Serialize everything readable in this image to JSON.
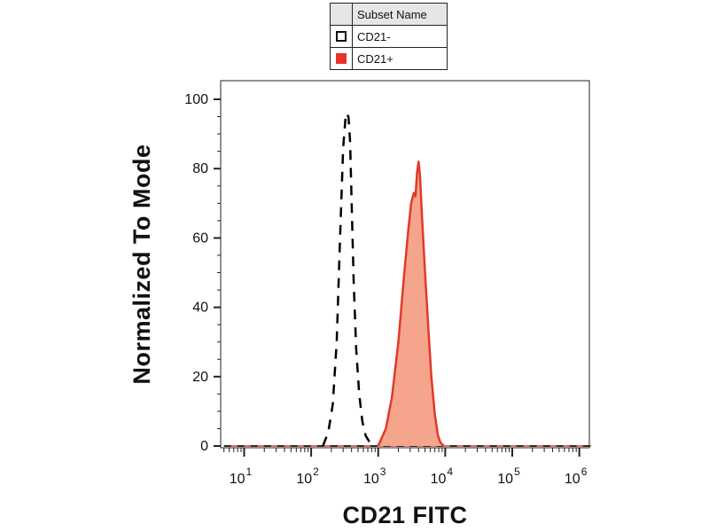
{
  "chart_data": {
    "type": "area",
    "title": "",
    "xlabel": "CD21 FITC",
    "ylabel": "Normalized To Mode",
    "x_scale": "log",
    "x_tick_labels": [
      {
        "base": "10",
        "exp": "1",
        "value": 10
      },
      {
        "base": "10",
        "exp": "2",
        "value": 100
      },
      {
        "base": "10",
        "exp": "3",
        "value": 1000
      },
      {
        "base": "10",
        "exp": "4",
        "value": 10000
      },
      {
        "base": "10",
        "exp": "5",
        "value": 100000
      },
      {
        "base": "10",
        "exp": "6",
        "value": 1000000
      }
    ],
    "y_ticks": [
      0,
      20,
      40,
      60,
      80,
      100
    ],
    "ylim": [
      -2,
      100
    ],
    "legend": {
      "header": "Subset Name",
      "entries": [
        {
          "label": "CD21-",
          "color": "#000000",
          "style": "dashed-outline"
        },
        {
          "label": "CD21+",
          "color": "#e8322b",
          "style": "filled"
        }
      ]
    },
    "series": [
      {
        "name": "CD21-",
        "line_color": "#000000",
        "fill": "none",
        "dashed": true,
        "x": [
          150,
          180,
          210,
          240,
          270,
          300,
          330,
          360,
          380,
          400,
          430,
          470,
          520,
          580,
          650,
          750,
          900
        ],
        "y": [
          0,
          4,
          12,
          30,
          60,
          86,
          96,
          95,
          88,
          72,
          48,
          28,
          15,
          7,
          3,
          1,
          0
        ]
      },
      {
        "name": "CD21+",
        "line_color": "#e03a2a",
        "fill": "#f4a58c",
        "dashed": false,
        "x": [
          1000,
          1300,
          1600,
          2000,
          2400,
          2800,
          3100,
          3400,
          3600,
          3800,
          4000,
          4200,
          4500,
          5000,
          5600,
          6200,
          7000,
          7800,
          8500,
          9500
        ],
        "y": [
          0,
          5,
          14,
          30,
          48,
          62,
          70,
          73,
          72,
          79,
          82,
          78,
          66,
          50,
          34,
          20,
          9,
          3,
          1,
          0
        ]
      }
    ],
    "baseline_extent": [
      5,
      1500000
    ]
  }
}
